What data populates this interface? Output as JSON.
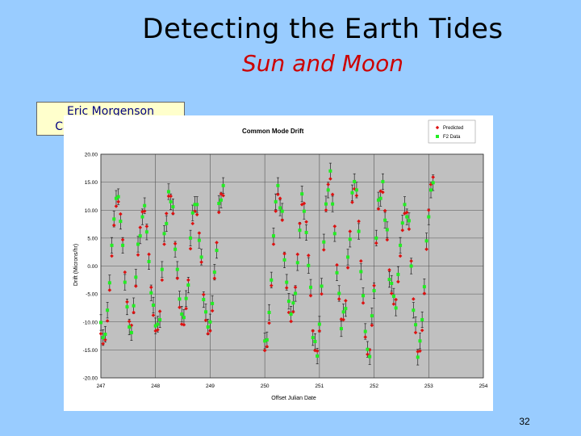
{
  "slide": {
    "title": "Detecting the Earth Tides",
    "subtitle": "Sun and Moon",
    "author_name": "Eric Morgenson",
    "author_role": "Caltech Sophomore",
    "page_number": "32"
  },
  "colors": {
    "background": "#99ccff",
    "subtitle": "#cc0000",
    "author_box_fill": "#ffffcc",
    "author_text": "#000080",
    "plot_area": "#c0c0c0",
    "predicted": "#dd1111",
    "data": "#22ee22",
    "error_bar": "#222222"
  },
  "chart_data": {
    "type": "scatter",
    "title": "Common Mode Drift",
    "xlabel": "Offset Julian Date",
    "ylabel": "Drift (Microns/hr)",
    "xlim": [
      247,
      254
    ],
    "ylim": [
      -20,
      20
    ],
    "x_ticks": [
      "247",
      "248",
      "249",
      "250",
      "251",
      "252",
      "253",
      "254"
    ],
    "y_ticks": [
      "20.00",
      "15.00",
      "10.00",
      "5.00",
      "0.00",
      "-5.00",
      "-10.00",
      "-15.00",
      "-20.00"
    ],
    "grid": true,
    "legend": "top-right",
    "series": [
      {
        "name": "Predicted",
        "marker": "diamond",
        "x": [
          247.0,
          247.04,
          247.08,
          247.12,
          247.16,
          247.2,
          247.24,
          247.28,
          247.32,
          247.36,
          247.4,
          247.44,
          247.48,
          247.52,
          247.56,
          247.6,
          247.64,
          247.68,
          247.72,
          247.76,
          247.8,
          247.84,
          247.88,
          247.92,
          247.96,
          248.0,
          248.04,
          248.08,
          248.12,
          248.16,
          248.2,
          248.24,
          248.28,
          248.32,
          248.36,
          248.4,
          248.44,
          248.48,
          248.52,
          248.56,
          248.6,
          248.64,
          248.68,
          248.72,
          248.76,
          248.8,
          248.84,
          248.88,
          248.92,
          248.96,
          249.0,
          249.04,
          249.08,
          249.12,
          249.16,
          249.2,
          249.24,
          250.0,
          250.04,
          250.08,
          250.12,
          250.16,
          250.2,
          250.24,
          250.28,
          250.32,
          250.36,
          250.4,
          250.44,
          250.48,
          250.52,
          250.56,
          250.6,
          250.64,
          250.68,
          250.72,
          250.76,
          250.8,
          250.84,
          250.88,
          250.92,
          250.96,
          251.0,
          251.04,
          251.08,
          251.12,
          251.16,
          251.2,
          251.24,
          251.28,
          251.32,
          251.36,
          251.4,
          251.44,
          251.48,
          251.52,
          251.56,
          251.6,
          251.64,
          251.68,
          251.72,
          251.76,
          251.8,
          251.84,
          251.88,
          251.92,
          251.96,
          252.0,
          252.04,
          252.08,
          252.12,
          252.16,
          252.2,
          252.24,
          252.28,
          252.32,
          252.36,
          252.4,
          252.44,
          252.48,
          252.52,
          252.56,
          252.6,
          252.64,
          252.68,
          252.72,
          252.76,
          252.8,
          252.84,
          252.88,
          252.92,
          252.96,
          253.0,
          253.04,
          253.08
        ],
        "values": [
          -12.1,
          -13.9,
          -13.2,
          -9.8,
          -4.3,
          1.8,
          7.3,
          10.7,
          11.5,
          9.3,
          4.7,
          -1.1,
          -6.4,
          -9.9,
          -10.6,
          -8.3,
          -3.6,
          2.0,
          6.9,
          9.7,
          9.8,
          7.1,
          2.1,
          -3.8,
          -8.8,
          -11.6,
          -11.4,
          -8.1,
          -2.5,
          3.9,
          9.4,
          12.5,
          12.5,
          9.4,
          4.0,
          -2.2,
          -7.4,
          -10.4,
          -10.5,
          -7.6,
          -2.5,
          3.1,
          7.6,
          9.8,
          9.2,
          5.9,
          0.7,
          -5.1,
          -9.7,
          -12.1,
          -11.6,
          -8.0,
          -2.2,
          4.2,
          9.6,
          12.9,
          12.6,
          -15.1,
          -14.4,
          -10.2,
          -3.5,
          3.9,
          9.8,
          12.8,
          12.1,
          8.2,
          2.2,
          -3.9,
          -8.3,
          -9.9,
          -8.2,
          -3.8,
          2.1,
          7.6,
          11.0,
          11.2,
          7.9,
          1.9,
          -5.3,
          -11.6,
          -15.1,
          -15.2,
          -11.6,
          -5.0,
          2.9,
          10.0,
          14.6,
          15.6,
          12.8,
          7.1,
          0.2,
          -5.9,
          -9.5,
          -9.6,
          -6.2,
          -0.3,
          6.2,
          11.4,
          13.8,
          12.6,
          8.0,
          0.9,
          -6.6,
          -12.7,
          -15.8,
          -15.0,
          -10.6,
          -3.5,
          4.1,
          10.2,
          13.4,
          13.2,
          9.9,
          4.7,
          -0.7,
          -4.9,
          -6.8,
          -6.0,
          -2.8,
          1.8,
          6.4,
          9.4,
          9.6,
          6.6,
          0.9,
          -5.9,
          -11.9,
          -15.3,
          -15.2,
          -11.5,
          -4.9,
          3.0,
          10.0,
          14.6,
          15.9
        ]
      },
      {
        "name": "F2 Data",
        "marker": "square",
        "x": [
          247.0,
          247.04,
          247.08,
          247.12,
          247.16,
          247.2,
          247.24,
          247.28,
          247.32,
          247.36,
          247.4,
          247.44,
          247.48,
          247.52,
          247.56,
          247.6,
          247.64,
          247.68,
          247.72,
          247.76,
          247.8,
          247.84,
          247.88,
          247.92,
          247.96,
          248.0,
          248.04,
          248.08,
          248.12,
          248.16,
          248.2,
          248.24,
          248.28,
          248.32,
          248.36,
          248.4,
          248.44,
          248.48,
          248.52,
          248.56,
          248.6,
          248.64,
          248.68,
          248.72,
          248.76,
          248.8,
          248.84,
          248.88,
          248.92,
          248.96,
          249.0,
          249.04,
          249.08,
          249.12,
          249.16,
          249.2,
          249.24,
          250.0,
          250.04,
          250.08,
          250.12,
          250.16,
          250.2,
          250.24,
          250.28,
          250.32,
          250.36,
          250.4,
          250.44,
          250.48,
          250.52,
          250.56,
          250.6,
          250.64,
          250.68,
          250.72,
          250.76,
          250.8,
          250.84,
          250.88,
          250.92,
          250.96,
          251.0,
          251.04,
          251.08,
          251.12,
          251.16,
          251.2,
          251.24,
          251.28,
          251.32,
          251.36,
          251.4,
          251.44,
          251.48,
          251.52,
          251.56,
          251.6,
          251.64,
          251.68,
          251.72,
          251.76,
          251.8,
          251.84,
          251.88,
          251.92,
          251.96,
          252.0,
          252.04,
          252.08,
          252.12,
          252.16,
          252.2,
          252.24,
          252.28,
          252.32,
          252.36,
          252.4,
          252.44,
          252.48,
          252.52,
          252.56,
          252.6,
          252.64,
          252.68,
          252.72,
          252.76,
          252.8,
          252.84,
          252.88,
          252.92,
          252.96,
          253.0,
          253.04,
          253.08
        ],
        "values": [
          -10.1,
          -12.8,
          -12.2,
          -7.9,
          -3.0,
          3.7,
          8.4,
          12.1,
          12.4,
          8.0,
          3.7,
          -2.9,
          -7.3,
          -10.9,
          -11.9,
          -7.1,
          -2.0,
          3.9,
          5.4,
          8.8,
          10.8,
          6.1,
          0.8,
          -4.8,
          -7.0,
          -10.7,
          -10.4,
          -9.6,
          -0.6,
          5.8,
          7.6,
          13.3,
          11.5,
          10.6,
          3.0,
          -0.6,
          -5.9,
          -8.6,
          -9.2,
          -5.8,
          -3.4,
          5.0,
          9.5,
          11.0,
          11.0,
          4.6,
          1.6,
          -6.0,
          -8.2,
          -10.9,
          -10.0,
          -6.7,
          -1.1,
          2.8,
          11.2,
          11.8,
          14.4,
          -13.4,
          -13.2,
          -8.3,
          -2.5,
          5.4,
          11.5,
          14.4,
          10.4,
          9.8,
          1.1,
          -2.9,
          -6.3,
          -8.6,
          -6.6,
          -4.9,
          0.6,
          6.4,
          12.9,
          9.8,
          6.0,
          0.1,
          -3.8,
          -12.8,
          -13.5,
          -16.1,
          -10.4,
          -3.6,
          4.3,
          11.1,
          13.6,
          17.0,
          11.1,
          5.8,
          -1.2,
          -4.9,
          -11.2,
          -8.2,
          -7.6,
          1.6,
          4.8,
          13.1,
          15.1,
          13.6,
          6.2,
          -1.0,
          -5.3,
          -11.7,
          -14.9,
          -16.2,
          -8.9,
          -4.4,
          5.0,
          11.8,
          12.1,
          15.1,
          8.2,
          6.5,
          -2.4,
          -3.1,
          -5.4,
          -7.5,
          -1.5,
          3.7,
          7.7,
          11.0,
          8.8,
          8.1,
          0.0,
          -7.9,
          -10.5,
          -16.3,
          -13.4,
          -9.6,
          -3.7,
          4.5,
          8.8,
          13.6,
          14.9
        ]
      }
    ]
  }
}
